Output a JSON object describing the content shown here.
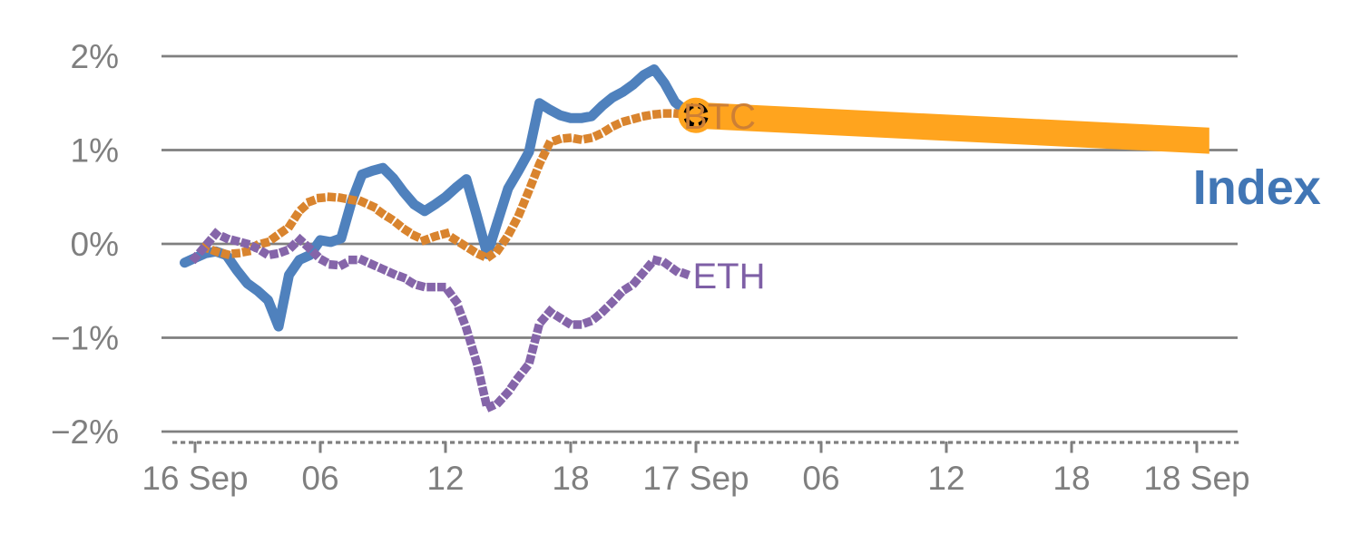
{
  "colors": {
    "background": "#ffffff",
    "grid": "#7f7f7f",
    "axis_text": "#7f7f7f"
  },
  "chart_data": {
    "type": "line",
    "title": "",
    "x_axis": {
      "tick_labels": [
        "16 Sep",
        "06",
        "12",
        "18",
        "17 Sep",
        "06",
        "12",
        "18",
        "18 Sep"
      ],
      "tick_hours": [
        0,
        6,
        12,
        18,
        24,
        30,
        36,
        42,
        48
      ],
      "unit": "time (hours, 16 Sep 00:00 to 18 Sep)",
      "minor_ticks": "dashed strip along axis"
    },
    "y_axis": {
      "tick_labels": [
        "2%",
        "1%",
        "0%",
        "−1%",
        "−2%"
      ],
      "tick_values": [
        2,
        1,
        0,
        -1,
        -2
      ],
      "range": [
        -2,
        2
      ],
      "grid": true,
      "unit": "percent change"
    },
    "legend_position": "end-of-line labels",
    "series": [
      {
        "name": "Index",
        "label": "Index",
        "style": "solid",
        "color": "#4f81bd",
        "label_color": "#4176b5",
        "points": [
          [
            -0.5,
            -0.2
          ],
          [
            0,
            -0.15
          ],
          [
            0.5,
            -0.1
          ],
          [
            1,
            -0.08
          ],
          [
            1.5,
            -0.12
          ],
          [
            2,
            -0.28
          ],
          [
            2.5,
            -0.42
          ],
          [
            3,
            -0.5
          ],
          [
            3.5,
            -0.6
          ],
          [
            4,
            -0.88
          ],
          [
            4.5,
            -0.33
          ],
          [
            5,
            -0.17
          ],
          [
            5.5,
            -0.12
          ],
          [
            6,
            0.04
          ],
          [
            6.5,
            0.02
          ],
          [
            7,
            0.06
          ],
          [
            7.5,
            0.45
          ],
          [
            8,
            0.74
          ],
          [
            8.5,
            0.78
          ],
          [
            9,
            0.81
          ],
          [
            9.5,
            0.7
          ],
          [
            10,
            0.55
          ],
          [
            10.5,
            0.42
          ],
          [
            11,
            0.35
          ],
          [
            11.5,
            0.42
          ],
          [
            12,
            0.5
          ],
          [
            12.5,
            0.6
          ],
          [
            13,
            0.69
          ],
          [
            13.5,
            0.3
          ],
          [
            14,
            -0.11
          ],
          [
            14.5,
            0.24
          ],
          [
            15,
            0.59
          ],
          [
            15.5,
            0.78
          ],
          [
            16,
            0.98
          ],
          [
            16.5,
            1.5
          ],
          [
            17,
            1.43
          ],
          [
            17.5,
            1.37
          ],
          [
            18,
            1.34
          ],
          [
            18.5,
            1.34
          ],
          [
            19,
            1.36
          ],
          [
            19.5,
            1.47
          ],
          [
            20,
            1.56
          ],
          [
            20.5,
            1.62
          ],
          [
            21,
            1.7
          ],
          [
            21.5,
            1.8
          ],
          [
            22,
            1.86
          ],
          [
            22.5,
            1.71
          ],
          [
            23,
            1.51
          ],
          [
            23.5,
            1.42
          ],
          [
            24,
            1.37
          ]
        ]
      },
      {
        "name": "BTC",
        "label": "BTC",
        "style": "dotted",
        "color": "#d9842e",
        "label_color": "#cd7f35",
        "points": [
          [
            0.5,
            -0.04
          ],
          [
            1,
            -0.08
          ],
          [
            1.5,
            -0.11
          ],
          [
            2,
            -0.1
          ],
          [
            2.5,
            -0.08
          ],
          [
            3,
            -0.01
          ],
          [
            3.5,
            0.02
          ],
          [
            4,
            0.1
          ],
          [
            4.5,
            0.18
          ],
          [
            5,
            0.35
          ],
          [
            5.5,
            0.45
          ],
          [
            6,
            0.49
          ],
          [
            6.5,
            0.5
          ],
          [
            7,
            0.49
          ],
          [
            7.5,
            0.47
          ],
          [
            8,
            0.45
          ],
          [
            8.5,
            0.4
          ],
          [
            9,
            0.32
          ],
          [
            9.5,
            0.25
          ],
          [
            10,
            0.16
          ],
          [
            10.5,
            0.09
          ],
          [
            11,
            0.04
          ],
          [
            11.5,
            0.08
          ],
          [
            12,
            0.11
          ],
          [
            12.5,
            0.04
          ],
          [
            13,
            -0.03
          ],
          [
            13.5,
            -0.1
          ],
          [
            14,
            -0.15
          ],
          [
            14.5,
            -0.07
          ],
          [
            15,
            0.09
          ],
          [
            15.5,
            0.3
          ],
          [
            16,
            0.57
          ],
          [
            16.5,
            0.85
          ],
          [
            17,
            1.08
          ],
          [
            17.5,
            1.12
          ],
          [
            18,
            1.13
          ],
          [
            18.5,
            1.11
          ],
          [
            19,
            1.13
          ],
          [
            19.5,
            1.18
          ],
          [
            20,
            1.25
          ],
          [
            20.5,
            1.3
          ],
          [
            21,
            1.33
          ],
          [
            21.5,
            1.36
          ],
          [
            22,
            1.38
          ],
          [
            22.5,
            1.39
          ],
          [
            23,
            1.39
          ],
          [
            23.5,
            1.38
          ],
          [
            24,
            1.37
          ]
        ]
      },
      {
        "name": "ETH",
        "label": "ETH",
        "style": "dotted",
        "color": "#8565a9",
        "label_color": "#7e5fa6",
        "points": [
          [
            0,
            -0.15
          ],
          [
            0.5,
            -0.02
          ],
          [
            1,
            0.11
          ],
          [
            1.5,
            0.06
          ],
          [
            2,
            0.03
          ],
          [
            2.5,
            0.0
          ],
          [
            3,
            -0.05
          ],
          [
            3.5,
            -0.12
          ],
          [
            4,
            -0.1
          ],
          [
            4.5,
            -0.06
          ],
          [
            5,
            0.05
          ],
          [
            5.5,
            -0.05
          ],
          [
            6,
            -0.16
          ],
          [
            6.5,
            -0.22
          ],
          [
            7,
            -0.23
          ],
          [
            7.5,
            -0.17
          ],
          [
            8,
            -0.17
          ],
          [
            8.5,
            -0.22
          ],
          [
            9,
            -0.27
          ],
          [
            9.5,
            -0.32
          ],
          [
            10,
            -0.36
          ],
          [
            10.5,
            -0.43
          ],
          [
            11,
            -0.46
          ],
          [
            11.5,
            -0.46
          ],
          [
            12,
            -0.46
          ],
          [
            12.5,
            -0.61
          ],
          [
            13,
            -0.9
          ],
          [
            13.5,
            -1.27
          ],
          [
            14,
            -1.75
          ],
          [
            14.5,
            -1.7
          ],
          [
            15,
            -1.58
          ],
          [
            15.5,
            -1.42
          ],
          [
            16,
            -1.28
          ],
          [
            16.5,
            -0.85
          ],
          [
            17,
            -0.72
          ],
          [
            17.5,
            -0.79
          ],
          [
            18,
            -0.86
          ],
          [
            18.5,
            -0.86
          ],
          [
            19,
            -0.82
          ],
          [
            19.5,
            -0.73
          ],
          [
            20,
            -0.62
          ],
          [
            20.5,
            -0.5
          ],
          [
            21,
            -0.43
          ],
          [
            21.5,
            -0.3
          ],
          [
            22,
            -0.17
          ],
          [
            22.5,
            -0.2
          ],
          [
            23,
            -0.28
          ],
          [
            23.5,
            -0.32
          ]
        ]
      }
    ],
    "projection_band": {
      "for_series": "Index",
      "color": "#ffa41e",
      "start": {
        "t": 24,
        "value": 1.37
      },
      "end": {
        "t": 48.6,
        "value": 1.1
      },
      "half_width_pct": 0.14
    },
    "current_marker": {
      "t": 24,
      "value": 1.37,
      "fill": "#ffa41e",
      "ring_color": "#000000"
    }
  }
}
